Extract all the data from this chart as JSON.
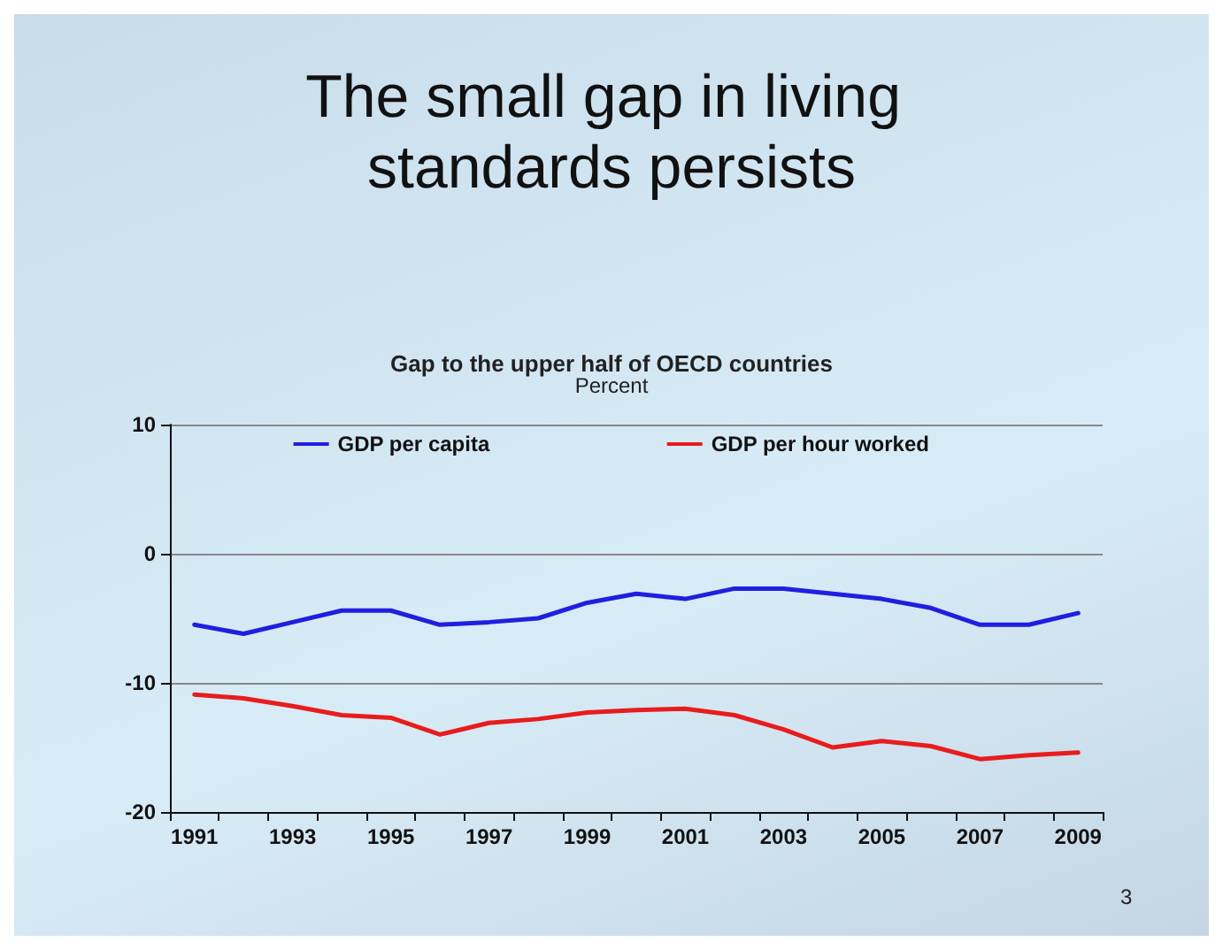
{
  "chart_data": {
    "type": "line",
    "title": "The small gap in living standards persists",
    "subtitle": "Gap to the upper half of OECD countries",
    "annotations": [
      "Percent",
      "3"
    ],
    "categories": [
      "1991",
      null,
      "1993",
      null,
      "1995",
      null,
      "1997",
      null,
      "1999",
      null,
      "2001",
      null,
      "2003",
      null,
      "2005",
      null,
      "2007",
      null,
      "2009"
    ],
    "series": [
      {
        "name": "GDP per capita",
        "color": "#1f1fe0",
        "values": [
          -5.5,
          -6.2,
          -5.3,
          -4.4,
          -4.4,
          -5.5,
          -5.3,
          -5.0,
          -3.8,
          -3.1,
          -3.5,
          -2.7,
          -2.7,
          -3.1,
          -3.5,
          -4.2,
          -5.5,
          -5.5,
          -4.6
        ]
      },
      {
        "name": "GDP per hour worked",
        "color": "#e81c1c",
        "values": [
          -10.9,
          -11.2,
          -11.8,
          -12.5,
          -12.7,
          -14.0,
          -13.1,
          -12.8,
          -12.3,
          -12.1,
          -12.0,
          -12.5,
          -13.6,
          -15.0,
          -14.5,
          -14.9,
          -15.9,
          -15.6,
          -15.4
        ]
      }
    ],
    "ylim": [
      -20,
      10
    ],
    "yticks": [
      -20,
      -10,
      0,
      10
    ],
    "grid": "y",
    "legend": "top",
    "marker": "none",
    "line_style": "solid"
  }
}
